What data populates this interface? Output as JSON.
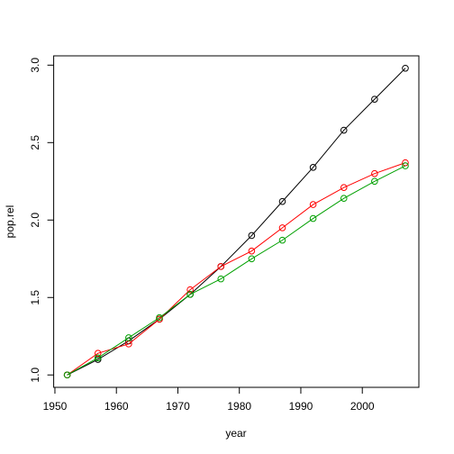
{
  "chart_data": {
    "type": "line",
    "x_label": "year",
    "y_label": "pop.rel",
    "x": [
      1952,
      1957,
      1962,
      1967,
      1972,
      1977,
      1982,
      1987,
      1992,
      1997,
      2002,
      2007
    ],
    "series": [
      {
        "color": "#000000",
        "values": [
          1.0,
          1.1,
          1.22,
          1.36,
          1.52,
          1.7,
          1.9,
          2.12,
          2.34,
          2.58,
          2.78,
          2.98
        ]
      },
      {
        "color": "#ff0000",
        "values": [
          1.0,
          1.14,
          1.2,
          1.36,
          1.55,
          1.7,
          1.8,
          1.95,
          2.1,
          2.21,
          2.3,
          2.37
        ]
      },
      {
        "color": "#00a000",
        "values": [
          1.0,
          1.11,
          1.24,
          1.37,
          1.52,
          1.62,
          1.75,
          1.87,
          2.01,
          2.14,
          2.25,
          2.35
        ]
      }
    ],
    "xlim": [
      1949.8,
      2009.2
    ],
    "ylim": [
      0.92,
      3.06
    ],
    "xticks": [
      1950,
      1960,
      1970,
      1980,
      1990,
      2000
    ],
    "yticks": [
      {
        "value": 1,
        "label": "1.0"
      },
      1.5,
      {
        "value": 2,
        "label": "2.0"
      },
      2.5,
      {
        "value": 3,
        "label": "3.0"
      }
    ]
  }
}
